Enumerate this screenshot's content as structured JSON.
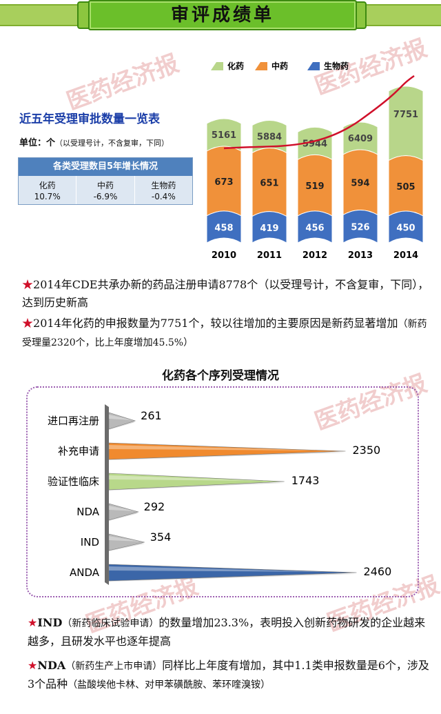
{
  "header": {
    "title": "审评成绩单"
  },
  "watermark": {
    "text": "医药经济报"
  },
  "overview": {
    "title": "近五年受理审批数量一览表",
    "unit_label": "单位：个",
    "unit_note": "（以受理号计，不含复审，下同）"
  },
  "growth_table": {
    "title": "各类受理数目5年增长情况",
    "cells": [
      {
        "name": "化药",
        "value": "10.7%"
      },
      {
        "name": "中药",
        "value": "-6.9%"
      },
      {
        "name": "生物药",
        "value": "-0.4%"
      }
    ]
  },
  "paragraphs": {
    "p1": "2014年CDE共承办新的药品注册申请8778个（以受理号计，不含复审，下同），达到历史新高",
    "p2_main": "2014年化药的申报数量为7751个，较以往增加的主要原因是新药显著增加",
    "p2_note": "（新药受理量2320个，比上年度增加45.5%）",
    "p3_lead": "IND",
    "p3_note": "（新药临床试验申请）",
    "p3_main": "的数量增加23.3%，表明投入创新药物研发的企业越来越多，且研发水平也逐年提高",
    "p4_lead": "NDA",
    "p4_note1": "（新药生产上市申请）",
    "p4_main": "同样比上年度有增加，其中1.1类申报数量是6个，涉及3个品种",
    "p4_note2": "（盐酸埃他卡林、对甲苯磺酰胺、苯环喹溴铵）",
    "star": "★"
  },
  "chart_data": [
    {
      "type": "bar",
      "stacked": true,
      "categories": [
        "2010",
        "2011",
        "2012",
        "2013",
        "2014"
      ],
      "series": [
        {
          "name": "生物药",
          "values": [
            458,
            419,
            456,
            526,
            450
          ],
          "color": "#3f6fc0"
        },
        {
          "name": "中药",
          "values": [
            673,
            651,
            519,
            594,
            505
          ],
          "color": "#f0913a"
        },
        {
          "name": "化药",
          "values": [
            5161,
            5884,
            5944,
            6409,
            7751
          ],
          "color": "#b8d68a"
        }
      ],
      "legend": [
        "化药",
        "中药",
        "生物药"
      ],
      "legend_position": "top",
      "trend_line": {
        "color": "#d0102a",
        "series": "化药"
      },
      "title": "",
      "xlabel": "",
      "ylabel": ""
    },
    {
      "type": "bar",
      "orientation": "horizontal",
      "title": "化药各个序列受理情况",
      "categories": [
        "进口再注册",
        "补充申请",
        "验证性临床",
        "NDA",
        "IND",
        "ANDA"
      ],
      "values": [
        261,
        2350,
        1743,
        292,
        354,
        2460
      ],
      "colors": [
        "#b9b9b9",
        "#f08a2e",
        "#b8d88a",
        "#b9b9b9",
        "#b9b9b9",
        "#3b66a8"
      ],
      "xlim": [
        0,
        2600
      ],
      "xlabel": "",
      "ylabel": ""
    }
  ]
}
